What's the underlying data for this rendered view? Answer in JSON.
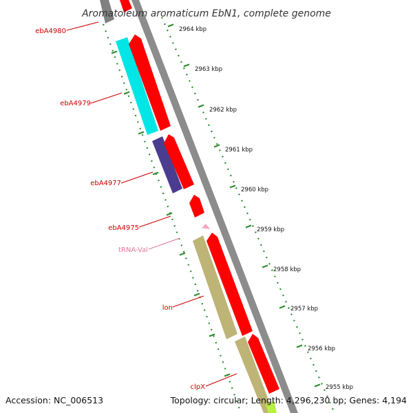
{
  "title": "Aromatoleum aromaticum EbN1, complete genome",
  "footer": {
    "accession": "Accession: NC_006513",
    "summary": "Topology: circular; Length: 4,296,230 bp; Genes: 4,194"
  },
  "kbp_labels": [
    "2964 kbp",
    "2963 kbp",
    "2962 kbp",
    "2961 kbp",
    "2960 kbp",
    "2959 kbp",
    "2958 kbp",
    "2957 kbp",
    "2956 kbp",
    "2955 kbp"
  ],
  "gene_labels": [
    {
      "text": "ebA4980",
      "color": "#cc0000"
    },
    {
      "text": "ebA4979",
      "color": "#cc0000"
    },
    {
      "text": "ebA4977",
      "color": "#cc0000"
    },
    {
      "text": "ebA4975",
      "color": "#cc0000"
    },
    {
      "text": "tRNA-Val",
      "color": "#e07aa0"
    },
    {
      "text": "lon",
      "color": "#cc0000"
    },
    {
      "text": "clpX",
      "color": "#cc0000"
    }
  ],
  "colors": {
    "gene_arrow": "#ff0000",
    "cyan_feature": "#00e5e5",
    "purple_feature": "#4a3d8f",
    "olive_feature": "#bdb476",
    "backbone": "#8c8c8c",
    "tick_green": "#2e8b2e",
    "trna": "#f4a6c0",
    "gray_feature": "#808080",
    "lime_feature": "#b8f040"
  }
}
